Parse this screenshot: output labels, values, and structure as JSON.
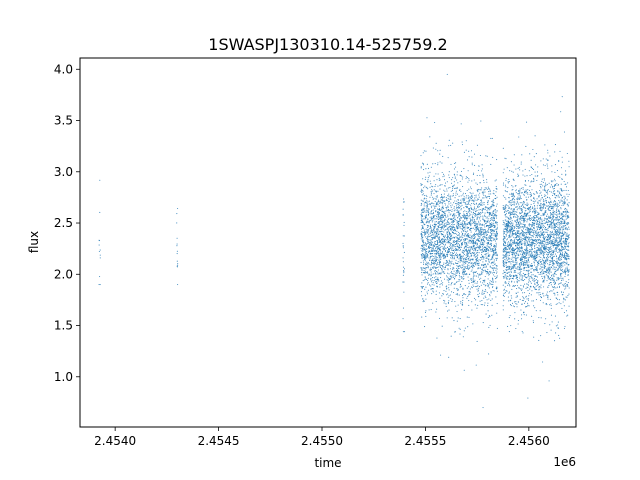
{
  "chart_data": {
    "type": "scatter",
    "title": "1SWASPJ130310.14-525759.2",
    "xlabel": "time",
    "ylabel": "flux",
    "x_offset_label": "1e6",
    "xlim": [
      2.45383,
      2.456228
    ],
    "ylim": [
      0.51,
      4.11
    ],
    "x_ticks": [
      2.454,
      2.4545,
      2.455,
      2.4555,
      2.456
    ],
    "x_tick_labels": [
      "2.4540",
      "2.4545",
      "2.4550",
      "2.4555",
      "2.4560"
    ],
    "y_ticks": [
      1.0,
      1.5,
      2.0,
      2.5,
      3.0,
      3.5,
      4.0
    ],
    "y_tick_labels": [
      "1.0",
      "1.5",
      "2.0",
      "2.5",
      "3.0",
      "3.5",
      "4.0"
    ],
    "grid": false,
    "marker_color": "#1f77b4",
    "clusters": [
      {
        "x_center": 2.453925,
        "x_width": 6e-06,
        "y_mean": 2.4,
        "y_sd": 0.3,
        "count": 12,
        "y_min": 1.9,
        "y_max": 3.08
      },
      {
        "x_center": 2.4543,
        "x_width": 6e-06,
        "y_mean": 2.3,
        "y_sd": 0.25,
        "count": 14,
        "y_min": 1.8,
        "y_max": 2.92
      },
      {
        "x_center": 2.455395,
        "x_width": 8e-06,
        "y_mean": 2.3,
        "y_sd": 0.3,
        "count": 30,
        "y_min": 1.44,
        "y_max": 3.1
      },
      {
        "x_center": 2.455663,
        "x_width": 0.00037,
        "y_mean": 2.35,
        "y_sd": 0.3,
        "count": 3200,
        "y_min": 0.7,
        "y_max": 3.95
      },
      {
        "x_center": 2.456035,
        "x_width": 0.00032,
        "y_mean": 2.35,
        "y_sd": 0.3,
        "count": 3200,
        "y_min": 0.7,
        "y_max": 3.92
      }
    ]
  }
}
